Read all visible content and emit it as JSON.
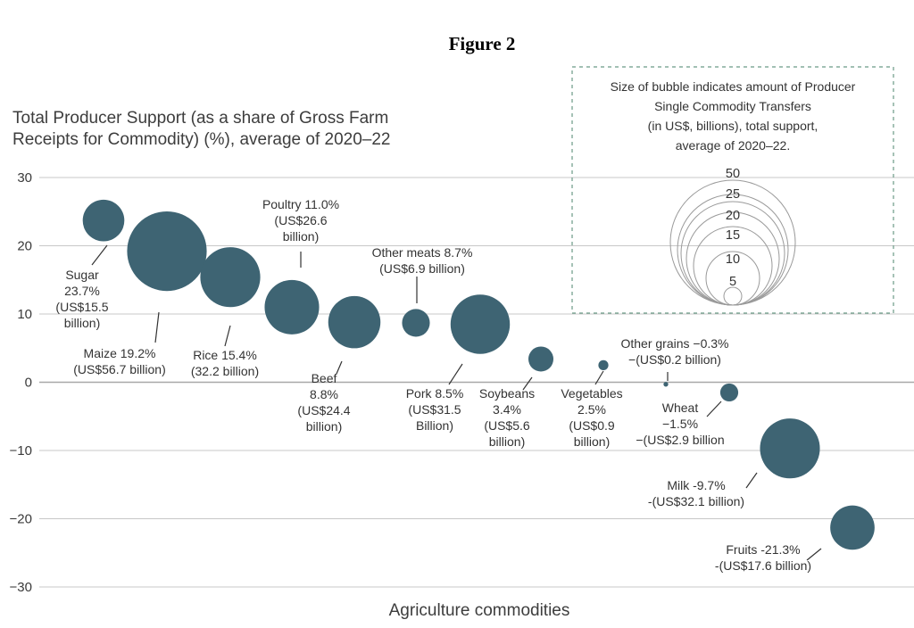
{
  "figure_title": "Figure 2",
  "chart_data": {
    "type": "bubble",
    "ylabel_lines": [
      "Total Producer Support (as a share of Gross Farm",
      "Receipts for Commodity) (%), average of 2020–22"
    ],
    "xlabel": "Agriculture commodities",
    "ylim": [
      -30,
      30
    ],
    "yticks": [
      "30",
      "20",
      "10",
      "0",
      "−10",
      "−20",
      "−30"
    ],
    "grid": true,
    "bubble_color": "#3e6473",
    "points": [
      {
        "key": "sugar",
        "y": 23.7,
        "size": 15.5,
        "label_lines": [
          "Sugar",
          "23.7%",
          "(US$15.5",
          "billion)"
        ]
      },
      {
        "key": "maize",
        "y": 19.2,
        "size": 56.7,
        "label_lines": [
          "Maize 19.2%",
          "(US$56.7 billion)"
        ]
      },
      {
        "key": "rice",
        "y": 15.4,
        "size": 32.2,
        "label_lines": [
          "Rice 15.4%",
          "(32.2 billion)"
        ]
      },
      {
        "key": "poultry",
        "y": 11.0,
        "size": 26.6,
        "label_lines": [
          "Poultry 11.0%",
          "(US$26.6",
          "billion)"
        ]
      },
      {
        "key": "beef",
        "y": 8.8,
        "size": 24.4,
        "label_lines": [
          "Beef",
          "8.8%",
          "(US$24.4",
          "billion)"
        ]
      },
      {
        "key": "other-meats",
        "y": 8.7,
        "size": 6.9,
        "label_lines": [
          "Other meats 8.7%",
          "(US$6.9 billion)"
        ]
      },
      {
        "key": "pork",
        "y": 8.5,
        "size": 31.5,
        "label_lines": [
          "Pork 8.5%",
          "(US$31.5",
          "Billion)"
        ]
      },
      {
        "key": "soybeans",
        "y": 3.4,
        "size": 5.6,
        "label_lines": [
          "Soybeans",
          "3.4%",
          "(US$5.6",
          "billion)"
        ]
      },
      {
        "key": "vegetables",
        "y": 2.5,
        "size": 0.9,
        "label_lines": [
          "Vegetables",
          "2.5%",
          "(US$0.9",
          "billion)"
        ]
      },
      {
        "key": "other-grains",
        "y": -0.3,
        "size": 0.2,
        "label_lines": [
          "Other grains −0.3%",
          "−(US$0.2 billion)"
        ]
      },
      {
        "key": "wheat",
        "y": -1.5,
        "size": 2.9,
        "label_lines": [
          "Wheat",
          "−1.5%",
          "−(US$2.9 billion"
        ]
      },
      {
        "key": "milk",
        "y": -9.7,
        "size": 32.1,
        "label_lines": [
          "Milk -9.7%",
          "-(US$32.1 billion)"
        ]
      },
      {
        "key": "fruits",
        "y": -21.3,
        "size": 17.6,
        "label_lines": [
          "Fruits -21.3%",
          "-(US$17.6 billion)"
        ]
      }
    ],
    "legend": {
      "text_lines": [
        "Size of bubble indicates amount of Producer",
        "Single Commodity Transfers",
        "(in US$, billions), total support,",
        "average of 2020–22."
      ],
      "sizes": [
        "50",
        "25",
        "20",
        "15",
        "10",
        "5"
      ]
    }
  }
}
